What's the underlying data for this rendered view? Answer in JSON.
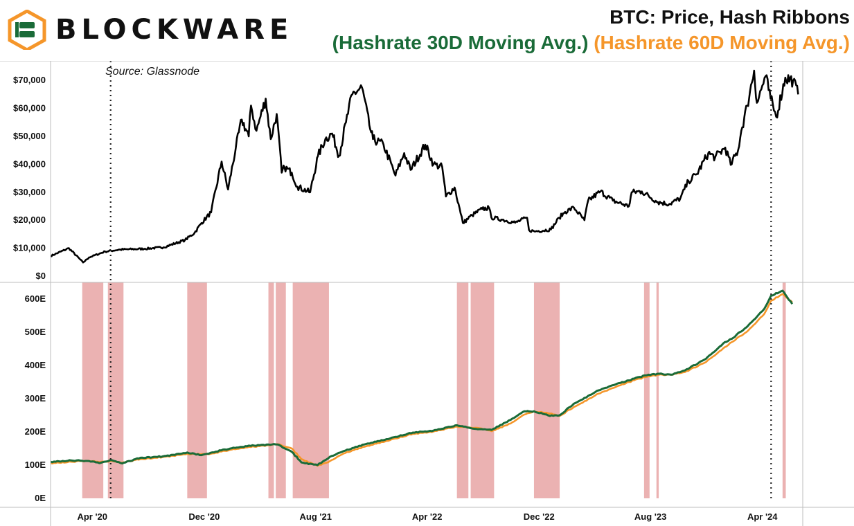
{
  "header": {
    "brand": "BLOCKWARE",
    "title": "BTC: Price, Hash Ribbons",
    "subtitle_30": "(Hashrate 30D Moving Avg.)",
    "subtitle_60": "(Hashrate 60D Moving Avg.)"
  },
  "colors": {
    "price": "#000000",
    "ma30": "#1a6b38",
    "ma60": "#f5962a",
    "capitulation": "#e8a5a5",
    "logo_green": "#1a6b38",
    "logo_orange": "#f5962a"
  },
  "chart_data": [
    {
      "type": "line",
      "annotation": "Source: Glassnode",
      "x_range": [
        "2020-01-01",
        "2024-06-28"
      ],
      "ylim": [
        0,
        75000
      ],
      "yticks": [
        0,
        10000,
        20000,
        30000,
        40000,
        50000,
        60000,
        70000
      ],
      "ytick_labels": [
        "$0",
        "$10,000",
        "$20,000",
        "$30,000",
        "$40,000",
        "$50,000",
        "$60,000",
        "$70,000"
      ],
      "series": [
        {
          "x": [
            "2020-01-01",
            "2020-02-10",
            "2020-03-12",
            "2020-03-25",
            "2020-04-29",
            "2020-06-01",
            "2020-07-25",
            "2020-09-03",
            "2020-10-20",
            "2020-11-10",
            "2020-11-25",
            "2020-12-16",
            "2021-01-08",
            "2021-01-22",
            "2021-02-08",
            "2021-02-21",
            "2021-03-08",
            "2021-03-13",
            "2021-03-25",
            "2021-04-14",
            "2021-04-25",
            "2021-05-08",
            "2021-05-19",
            "2021-05-25",
            "2021-06-10",
            "2021-06-22",
            "2021-07-20",
            "2021-08-06",
            "2021-08-22",
            "2021-09-06",
            "2021-09-21",
            "2021-10-06",
            "2021-10-20",
            "2021-11-10",
            "2021-11-26",
            "2021-12-04",
            "2021-12-27",
            "2022-01-22",
            "2022-02-10",
            "2022-02-24",
            "2022-03-28",
            "2022-04-15",
            "2022-05-04",
            "2022-05-12",
            "2022-05-31",
            "2022-06-13",
            "2022-06-18",
            "2022-07-08",
            "2022-07-30",
            "2022-08-14",
            "2022-08-19",
            "2022-09-12",
            "2022-10-10",
            "2022-11-05",
            "2022-11-09",
            "2022-11-21",
            "2022-12-27",
            "2023-01-14",
            "2023-01-27",
            "2023-02-15",
            "2023-03-10",
            "2023-03-18",
            "2023-04-14",
            "2023-05-11",
            "2023-06-15",
            "2023-06-21",
            "2023-07-13",
            "2023-08-17",
            "2023-09-11",
            "2023-10-05",
            "2023-10-23",
            "2023-11-10",
            "2023-12-05",
            "2023-12-20",
            "2024-01-11",
            "2024-01-23",
            "2024-02-08",
            "2024-02-15",
            "2024-02-28",
            "2024-03-05",
            "2024-03-14",
            "2024-03-20",
            "2024-04-08",
            "2024-04-19",
            "2024-05-01",
            "2024-05-21",
            "2024-06-07",
            "2024-06-18"
          ],
          "y": [
            7200,
            10000,
            4900,
            6700,
            8800,
            9500,
            9800,
            10300,
            12900,
            15500,
            19000,
            22800,
            41000,
            31000,
            46000,
            56000,
            50000,
            61000,
            52000,
            63500,
            49000,
            58000,
            37000,
            39000,
            37000,
            32000,
            30000,
            43000,
            49000,
            51000,
            43000,
            55000,
            65000,
            67500,
            54000,
            49000,
            47000,
            36000,
            44000,
            38000,
            47000,
            40000,
            39000,
            28500,
            31700,
            22500,
            19000,
            21800,
            24000,
            24400,
            21000,
            20200,
            19100,
            20900,
            16500,
            16000,
            16700,
            20900,
            23000,
            24500,
            20000,
            27000,
            30300,
            27000,
            25000,
            30000,
            30300,
            26500,
            25800,
            27800,
            34000,
            36500,
            44000,
            42500,
            46000,
            39800,
            45000,
            52000,
            61000,
            66000,
            73500,
            62000,
            71500,
            63500,
            57000,
            71000,
            70000,
            65000
          ]
        }
      ]
    },
    {
      "type": "line",
      "xticks": [
        "Apr '20",
        "Dec '20",
        "Aug '21",
        "Apr '22",
        "Dec '22",
        "Aug '23",
        "Apr '24"
      ],
      "xtick_dates": [
        "2020-04-01",
        "2020-12-01",
        "2021-08-01",
        "2022-04-01",
        "2022-12-01",
        "2023-08-01",
        "2024-04-01"
      ],
      "x_range": [
        "2020-01-01",
        "2024-06-28"
      ],
      "ylim": [
        0,
        650
      ],
      "yticks": [
        0,
        100,
        200,
        300,
        400,
        500,
        600
      ],
      "ytick_labels": [
        "0E",
        "100E",
        "200E",
        "300E",
        "400E",
        "500E",
        "600E"
      ],
      "vlines": [
        "2020-05-11",
        "2024-04-20"
      ],
      "capitulation_periods": [
        [
          "2020-03-10",
          "2020-04-25"
        ],
        [
          "2020-05-05",
          "2020-06-08"
        ],
        [
          "2020-10-25",
          "2020-12-07"
        ],
        [
          "2021-04-20",
          "2021-05-02"
        ],
        [
          "2021-05-06",
          "2021-05-28"
        ],
        [
          "2021-06-12",
          "2021-08-30"
        ],
        [
          "2022-06-05",
          "2022-06-30"
        ],
        [
          "2022-07-05",
          "2022-08-25"
        ],
        [
          "2022-11-20",
          "2023-01-15"
        ],
        [
          "2023-07-18",
          "2023-07-30"
        ],
        [
          "2023-08-14",
          "2023-08-19"
        ],
        [
          "2024-05-15",
          "2024-05-22"
        ]
      ],
      "series": [
        {
          "name": "Hashrate 30D Moving Avg.",
          "x": [
            "2020-01-01",
            "2020-02-15",
            "2020-03-10",
            "2020-04-20",
            "2020-05-10",
            "2020-06-05",
            "2020-07-15",
            "2020-09-01",
            "2020-10-25",
            "2020-11-25",
            "2020-12-15",
            "2021-01-15",
            "2021-03-01",
            "2021-04-20",
            "2021-05-10",
            "2021-06-10",
            "2021-07-01",
            "2021-08-05",
            "2021-09-01",
            "2021-10-01",
            "2021-11-15",
            "2022-01-10",
            "2022-03-01",
            "2022-04-15",
            "2022-06-05",
            "2022-07-20",
            "2022-08-20",
            "2022-09-30",
            "2022-10-30",
            "2022-11-20",
            "2022-12-25",
            "2023-01-15",
            "2023-02-15",
            "2023-04-10",
            "2023-05-20",
            "2023-06-15",
            "2023-07-20",
            "2023-08-20",
            "2023-09-15",
            "2023-10-15",
            "2023-11-30",
            "2024-01-10",
            "2024-01-25",
            "2024-03-01",
            "2024-04-05",
            "2024-04-20",
            "2024-05-15",
            "2024-06-05"
          ],
          "y": [
            110,
            114,
            113,
            107,
            115,
            105,
            122,
            126,
            138,
            130,
            137,
            147,
            157,
            162,
            162,
            140,
            108,
            100,
            125,
            142,
            162,
            180,
            198,
            204,
            220,
            208,
            206,
            236,
            262,
            262,
            248,
            250,
            285,
            325,
            345,
            355,
            370,
            375,
            372,
            385,
            420,
            470,
            480,
            520,
            570,
            610,
            625,
            585
          ]
        },
        {
          "name": "Hashrate 60D Moving Avg.",
          "x": [
            "2020-01-01",
            "2020-02-15",
            "2020-03-10",
            "2020-04-20",
            "2020-05-10",
            "2020-06-05",
            "2020-07-15",
            "2020-09-01",
            "2020-10-25",
            "2020-11-25",
            "2020-12-15",
            "2021-01-15",
            "2021-03-01",
            "2021-04-20",
            "2021-05-10",
            "2021-06-10",
            "2021-07-01",
            "2021-08-05",
            "2021-09-01",
            "2021-10-01",
            "2021-11-15",
            "2022-01-10",
            "2022-03-01",
            "2022-04-15",
            "2022-06-05",
            "2022-07-20",
            "2022-08-20",
            "2022-09-30",
            "2022-10-30",
            "2022-11-20",
            "2022-12-25",
            "2023-01-15",
            "2023-02-15",
            "2023-04-10",
            "2023-05-20",
            "2023-06-15",
            "2023-07-20",
            "2023-08-20",
            "2023-09-15",
            "2023-10-15",
            "2023-11-30",
            "2024-01-10",
            "2024-01-25",
            "2024-03-01",
            "2024-04-05",
            "2024-04-20",
            "2024-05-15",
            "2024-06-05"
          ],
          "y": [
            106,
            110,
            112,
            110,
            112,
            107,
            118,
            124,
            134,
            133,
            134,
            143,
            153,
            160,
            163,
            150,
            118,
            98,
            112,
            135,
            155,
            175,
            194,
            201,
            216,
            212,
            202,
            225,
            252,
            262,
            255,
            248,
            275,
            315,
            337,
            350,
            365,
            372,
            372,
            380,
            410,
            455,
            470,
            505,
            555,
            595,
            615,
            590
          ]
        }
      ]
    }
  ]
}
